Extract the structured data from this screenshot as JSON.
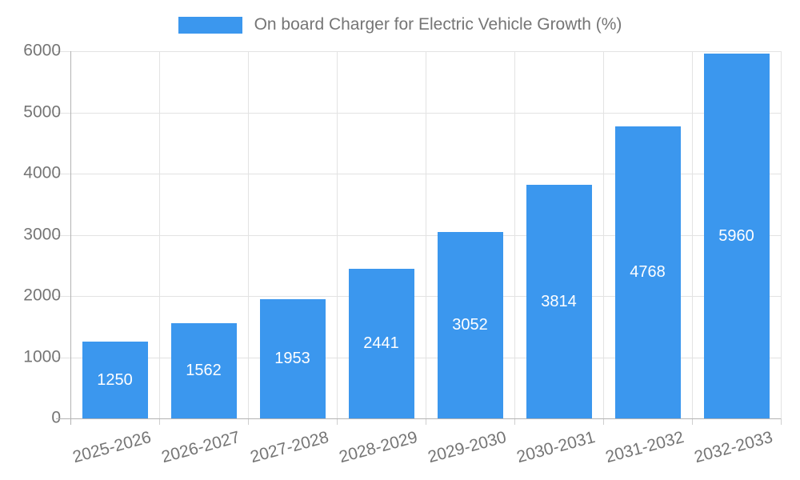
{
  "chart_data": {
    "type": "bar",
    "title": "On board Charger for Electric Vehicle Growth (%)",
    "categories": [
      "2025-2026",
      "2026-2027",
      "2027-2028",
      "2028-2029",
      "2029-2030",
      "2030-2031",
      "2031-2032",
      "2032-2033"
    ],
    "values": [
      1250,
      1562,
      1953,
      2441,
      3052,
      3814,
      4768,
      5960
    ],
    "xlabel": "",
    "ylabel": "",
    "ylim": [
      0,
      6000
    ],
    "yticks": [
      0,
      1000,
      2000,
      3000,
      4000,
      5000,
      6000
    ],
    "grid": true,
    "legend_position": "top",
    "value_label_position": "inside-center"
  },
  "colors": {
    "bar": "#3b97ee",
    "axis_label": "#757575",
    "gridline": "#e3e3e3",
    "axis_line": "#b3b3b3",
    "tick": "#cfcfcf",
    "value_label": "#ffffff",
    "background": "#ffffff"
  }
}
